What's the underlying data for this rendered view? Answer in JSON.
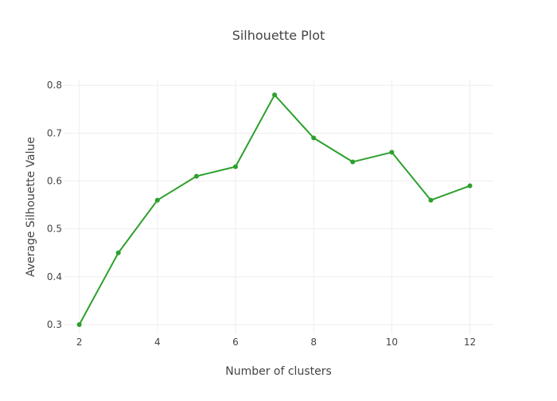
{
  "chart_data": {
    "type": "line",
    "title": "Silhouette Plot",
    "xlabel": "Number of clusters",
    "ylabel": "Average Silhouette Value",
    "x": [
      2,
      3,
      4,
      5,
      6,
      7,
      8,
      9,
      10,
      11,
      12
    ],
    "series": [
      {
        "values": [
          0.3,
          0.45,
          0.56,
          0.61,
          0.63,
          0.78,
          0.69,
          0.64,
          0.66,
          0.56,
          0.59
        ],
        "color": "#2ca02c"
      }
    ],
    "xlim": [
      1.6,
      12.6
    ],
    "ylim": [
      0.28,
      0.812
    ],
    "xticks": [
      2,
      4,
      6,
      8,
      10,
      12
    ],
    "xtick_labels": [
      "2",
      "4",
      "6",
      "8",
      "10",
      "12"
    ],
    "yticks": [
      0.3,
      0.4,
      0.5,
      0.6,
      0.7,
      0.8
    ],
    "ytick_labels": [
      "0.3",
      "0.4",
      "0.5",
      "0.6",
      "0.7",
      "0.8"
    ],
    "grid": true,
    "legend": false
  }
}
